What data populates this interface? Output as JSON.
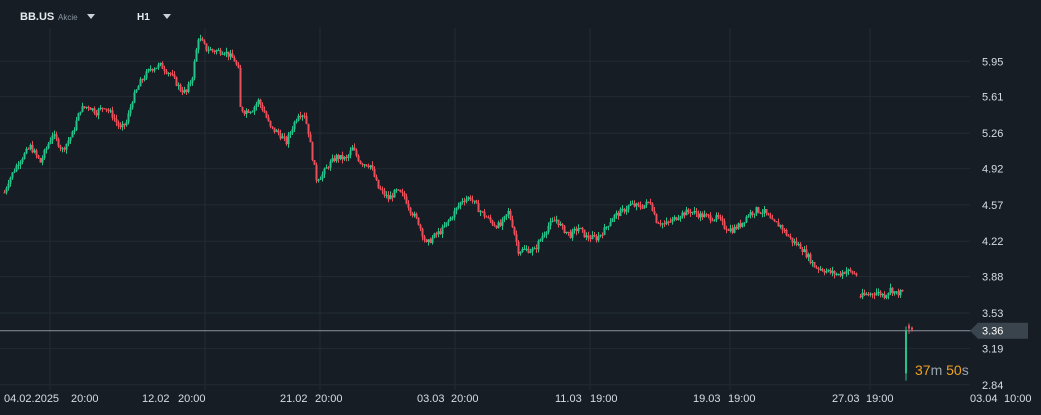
{
  "header": {
    "symbol": "BB.US",
    "instrument_type": "Akcie",
    "timeframe": "H1"
  },
  "price_tag": {
    "value": "3.36",
    "color": "#3a444d"
  },
  "countdown": {
    "minutes": "37",
    "minutes_unit": "m",
    "seconds": "50",
    "seconds_unit": "s"
  },
  "colors": {
    "background": "#161d24",
    "grid": "#222b33",
    "up": "#26c28a",
    "down": "#e8505b",
    "axis_text": "#d6dde3",
    "current_line": "#8a949c"
  },
  "chart_data": {
    "type": "candlestick",
    "x_tick_labels": [
      "04.02.2025",
      "20:00",
      "12.02",
      "20:00",
      "21.02",
      "20:00",
      "03.03",
      "20:00",
      "11.03",
      "19:00",
      "19.03",
      "19:00",
      "27.03",
      "19:00",
      "03.04",
      "10:00"
    ],
    "y_ticks": [
      5.95,
      5.61,
      5.26,
      4.92,
      4.57,
      4.22,
      3.88,
      3.53,
      3.19,
      2.84
    ],
    "ylim": [
      2.79,
      6.27
    ],
    "current_price": 3.36,
    "grid": true,
    "close_path": [
      [
        0,
        4.58
      ],
      [
        8,
        4.8
      ],
      [
        18,
        4.98
      ],
      [
        30,
        5.13
      ],
      [
        40,
        4.98
      ],
      [
        52,
        5.25
      ],
      [
        62,
        5.1
      ],
      [
        72,
        5.25
      ],
      [
        80,
        5.49
      ],
      [
        88,
        5.52
      ],
      [
        96,
        5.46
      ],
      [
        104,
        5.52
      ],
      [
        112,
        5.43
      ],
      [
        120,
        5.3
      ],
      [
        126,
        5.36
      ],
      [
        132,
        5.58
      ],
      [
        140,
        5.75
      ],
      [
        150,
        5.88
      ],
      [
        160,
        5.91
      ],
      [
        170,
        5.83
      ],
      [
        180,
        5.68
      ],
      [
        186,
        5.65
      ],
      [
        192,
        5.81
      ],
      [
        198,
        6.18
      ],
      [
        206,
        6.07
      ],
      [
        214,
        6.05
      ],
      [
        224,
        6.05
      ],
      [
        234,
        5.96
      ],
      [
        238,
        5.86
      ],
      [
        240,
        5.5
      ],
      [
        244,
        5.47
      ],
      [
        252,
        5.49
      ],
      [
        258,
        5.57
      ],
      [
        264,
        5.46
      ],
      [
        270,
        5.31
      ],
      [
        278,
        5.26
      ],
      [
        286,
        5.17
      ],
      [
        290,
        5.27
      ],
      [
        298,
        5.45
      ],
      [
        304,
        5.44
      ],
      [
        308,
        5.27
      ],
      [
        312,
        5.03
      ],
      [
        316,
        4.82
      ],
      [
        322,
        4.86
      ],
      [
        328,
        4.95
      ],
      [
        336,
        5.03
      ],
      [
        346,
        5.01
      ],
      [
        352,
        5.11
      ],
      [
        360,
        4.98
      ],
      [
        370,
        4.95
      ],
      [
        378,
        4.73
      ],
      [
        388,
        4.63
      ],
      [
        396,
        4.7
      ],
      [
        404,
        4.65
      ],
      [
        410,
        4.52
      ],
      [
        418,
        4.4
      ],
      [
        426,
        4.19
      ],
      [
        434,
        4.27
      ],
      [
        442,
        4.33
      ],
      [
        452,
        4.47
      ],
      [
        462,
        4.62
      ],
      [
        470,
        4.64
      ],
      [
        478,
        4.53
      ],
      [
        486,
        4.45
      ],
      [
        494,
        4.38
      ],
      [
        500,
        4.37
      ],
      [
        508,
        4.5
      ],
      [
        512,
        4.38
      ],
      [
        518,
        4.13
      ],
      [
        526,
        4.14
      ],
      [
        534,
        4.13
      ],
      [
        540,
        4.24
      ],
      [
        548,
        4.37
      ],
      [
        556,
        4.43
      ],
      [
        562,
        4.34
      ],
      [
        570,
        4.28
      ],
      [
        578,
        4.35
      ],
      [
        586,
        4.26
      ],
      [
        596,
        4.25
      ],
      [
        604,
        4.33
      ],
      [
        612,
        4.45
      ],
      [
        622,
        4.51
      ],
      [
        630,
        4.57
      ],
      [
        640,
        4.55
      ],
      [
        650,
        4.6
      ],
      [
        656,
        4.42
      ],
      [
        664,
        4.38
      ],
      [
        672,
        4.42
      ],
      [
        680,
        4.48
      ],
      [
        690,
        4.51
      ],
      [
        700,
        4.47
      ],
      [
        710,
        4.45
      ],
      [
        718,
        4.44
      ],
      [
        724,
        4.36
      ],
      [
        732,
        4.33
      ],
      [
        740,
        4.38
      ],
      [
        748,
        4.48
      ],
      [
        756,
        4.52
      ],
      [
        764,
        4.5
      ],
      [
        772,
        4.4
      ],
      [
        780,
        4.37
      ],
      [
        786,
        4.29
      ],
      [
        792,
        4.22
      ],
      [
        800,
        4.17
      ],
      [
        808,
        4.07
      ],
      [
        814,
        3.98
      ],
      [
        822,
        3.95
      ],
      [
        830,
        3.92
      ],
      [
        838,
        3.9
      ],
      [
        846,
        3.94
      ],
      [
        856,
        3.9
      ]
    ],
    "segment_2": [
      [
        860,
        3.69
      ],
      [
        868,
        3.71
      ],
      [
        876,
        3.73
      ],
      [
        884,
        3.7
      ],
      [
        890,
        3.76
      ],
      [
        896,
        3.72
      ],
      [
        902,
        3.73
      ]
    ],
    "segment_3": [
      [
        906,
        2.88
      ],
      [
        908,
        3.1
      ],
      [
        910,
        3.42
      ],
      [
        913,
        3.39
      ]
    ]
  }
}
